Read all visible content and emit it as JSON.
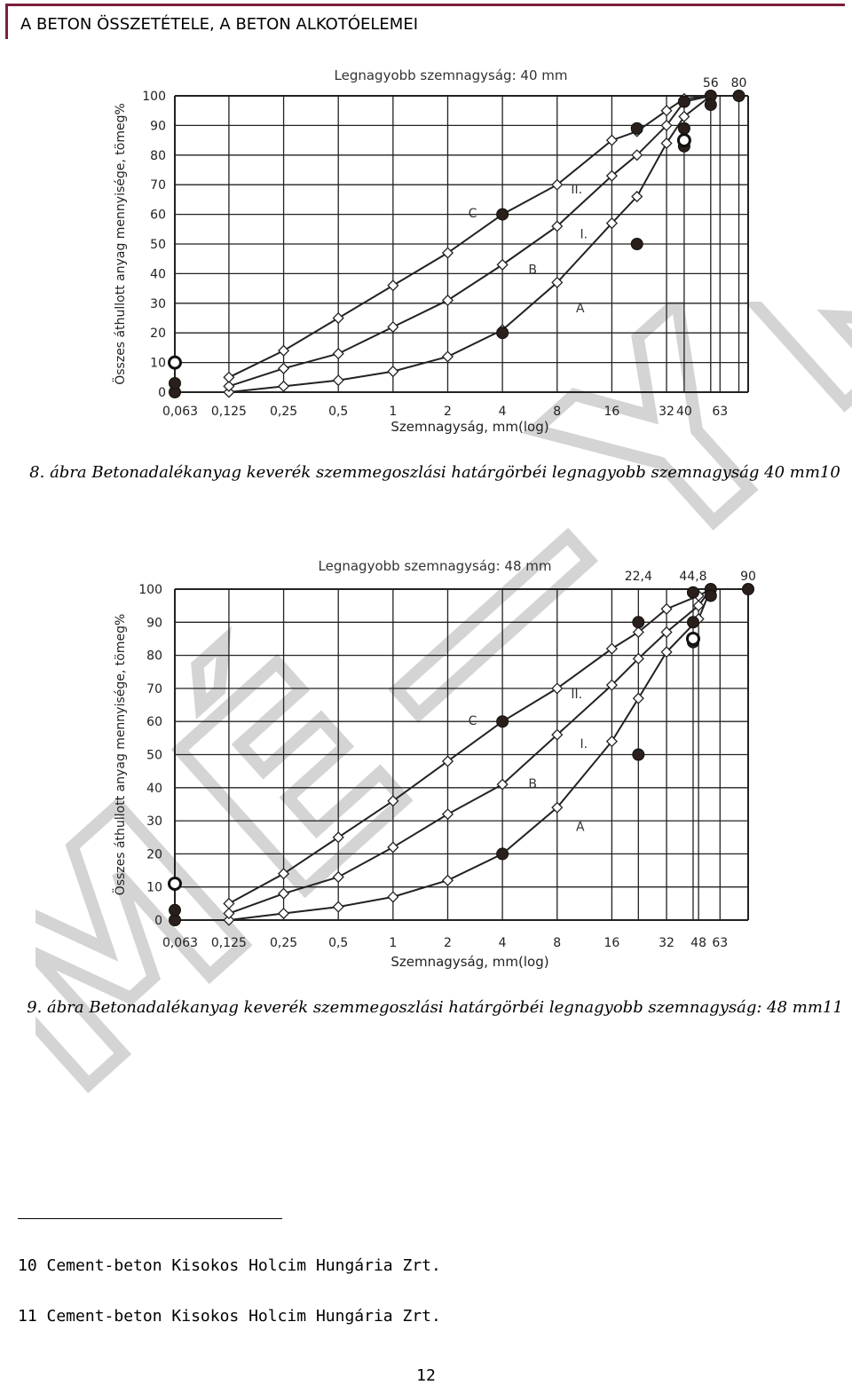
{
  "header": {
    "title": "A BETON ÖSSZETÉTELE, A BETON ALKOTÓELEMEI"
  },
  "watermark": {
    "text": "MÉ—YKG"
  },
  "figures": [
    {
      "caption": "8. ábra Betonadalékanyag keverék szemmegoszlási határgörbéi legnagyobb szemnagyság 40 mm10"
    },
    {
      "caption": "9. ábra Betonadalékanyag keverék szemmegoszlási határgörbéi legnagyobb szemnagyság: 48 mm11"
    }
  ],
  "chart_data": [
    {
      "type": "line",
      "title": "Legnagyobb szemnagyság: 40 mm",
      "xlabel": "Szemnagyság, mm(log)",
      "ylabel": "Összes áthullott anyag mennyisége, tömeg%",
      "ylim": [
        0,
        100
      ],
      "x_ticks": [
        "0,063",
        "0,125",
        "0,25",
        "0,5",
        "1",
        "2",
        "4",
        "8",
        "16",
        "32",
        "40",
        "63"
      ],
      "top_labels": [
        "56",
        "80"
      ],
      "y_ticks": [
        0,
        10,
        20,
        30,
        40,
        50,
        60,
        70,
        80,
        90,
        100
      ],
      "curve_labels": [
        "A",
        "B",
        "C",
        "I.",
        "II."
      ],
      "series": [
        {
          "name": "A",
          "x": [
            "0,125",
            "0,25",
            "0,5",
            "1",
            "2",
            "4",
            "8",
            "16",
            "22",
            "32",
            "40",
            "56"
          ],
          "y": [
            0,
            2,
            4,
            7,
            12,
            21,
            37,
            57,
            66,
            84,
            93,
            100
          ]
        },
        {
          "name": "B",
          "x": [
            "0,125",
            "0,25",
            "0,5",
            "1",
            "2",
            "4",
            "8",
            "16",
            "22",
            "32",
            "40",
            "56"
          ],
          "y": [
            2,
            8,
            13,
            22,
            31,
            43,
            56,
            73,
            80,
            90,
            98,
            100
          ]
        },
        {
          "name": "C",
          "x": [
            "0,125",
            "0,25",
            "0,5",
            "1",
            "2",
            "4",
            "8",
            "16",
            "22",
            "32",
            "40",
            "56"
          ],
          "y": [
            5,
            14,
            25,
            36,
            47,
            60,
            70,
            85,
            88,
            95,
            99,
            100
          ]
        }
      ],
      "filled_points": [
        {
          "x": "0,063",
          "y": 0
        },
        {
          "x": "0,063",
          "y": 3
        },
        {
          "x": "4",
          "y": 20
        },
        {
          "x": "4",
          "y": 60
        },
        {
          "x": "22",
          "y": 50
        },
        {
          "x": "22",
          "y": 89
        },
        {
          "x": "40",
          "y": 89
        },
        {
          "x": "40",
          "y": 98
        },
        {
          "x": "56",
          "y": 100
        },
        {
          "x": "56",
          "y": 97
        },
        {
          "x": "80",
          "y": 100
        },
        {
          "x": "40",
          "y": 83
        }
      ],
      "open_points": [
        {
          "x": "0,063",
          "y": 10
        },
        {
          "x": "40",
          "y": 85
        }
      ]
    },
    {
      "type": "line",
      "title": "Legnagyobb szemnagyság: 48 mm",
      "xlabel": "Szemnagyság, mm(log)",
      "ylabel": "Összes áthullott anyag mennyisége, tömeg%",
      "ylim": [
        0,
        100
      ],
      "x_ticks": [
        "0,063",
        "0,125",
        "0,25",
        "0,5",
        "1",
        "2",
        "4",
        "8",
        "16",
        "32",
        "48",
        "63"
      ],
      "top_labels": [
        "22,4",
        "44,8",
        "90"
      ],
      "y_ticks": [
        0,
        10,
        20,
        30,
        40,
        50,
        60,
        70,
        80,
        90,
        100
      ],
      "curve_labels": [
        "A",
        "B",
        "C",
        "I.",
        "II."
      ],
      "series": [
        {
          "name": "A",
          "x": [
            "0,125",
            "0,25",
            "0,5",
            "1",
            "2",
            "4",
            "8",
            "16",
            "22,4",
            "32",
            "48",
            "56"
          ],
          "y": [
            0,
            2,
            4,
            7,
            12,
            20,
            34,
            54,
            67,
            81,
            91,
            100
          ]
        },
        {
          "name": "B",
          "x": [
            "0,125",
            "0,25",
            "0,5",
            "1",
            "2",
            "4",
            "8",
            "16",
            "22,4",
            "32",
            "48",
            "56"
          ],
          "y": [
            2,
            8,
            13,
            22,
            32,
            41,
            56,
            71,
            79,
            87,
            95,
            100
          ]
        },
        {
          "name": "C",
          "x": [
            "0,125",
            "0,25",
            "0,5",
            "1",
            "2",
            "4",
            "8",
            "16",
            "22,4",
            "32",
            "48",
            "56"
          ],
          "y": [
            5,
            14,
            25,
            36,
            48,
            60,
            70,
            82,
            87,
            94,
            98,
            100
          ]
        }
      ],
      "filled_points": [
        {
          "x": "0,063",
          "y": 0
        },
        {
          "x": "0,063",
          "y": 3
        },
        {
          "x": "4",
          "y": 20
        },
        {
          "x": "4",
          "y": 60
        },
        {
          "x": "22,4",
          "y": 50
        },
        {
          "x": "22,4",
          "y": 90
        },
        {
          "x": "44,8",
          "y": 90
        },
        {
          "x": "44,8",
          "y": 99
        },
        {
          "x": "56",
          "y": 100
        },
        {
          "x": "56",
          "y": 98
        },
        {
          "x": "90",
          "y": 100
        },
        {
          "x": "44,8",
          "y": 84
        }
      ],
      "open_points": [
        {
          "x": "0,063",
          "y": 11
        },
        {
          "x": "44,8",
          "y": 85
        }
      ]
    }
  ],
  "footnotes": [
    "10 Cement-beton Kisokos Holcim Hungária Zrt.",
    "11 Cement-beton Kisokos Holcim Hungária Zrt."
  ],
  "page_number": "12"
}
